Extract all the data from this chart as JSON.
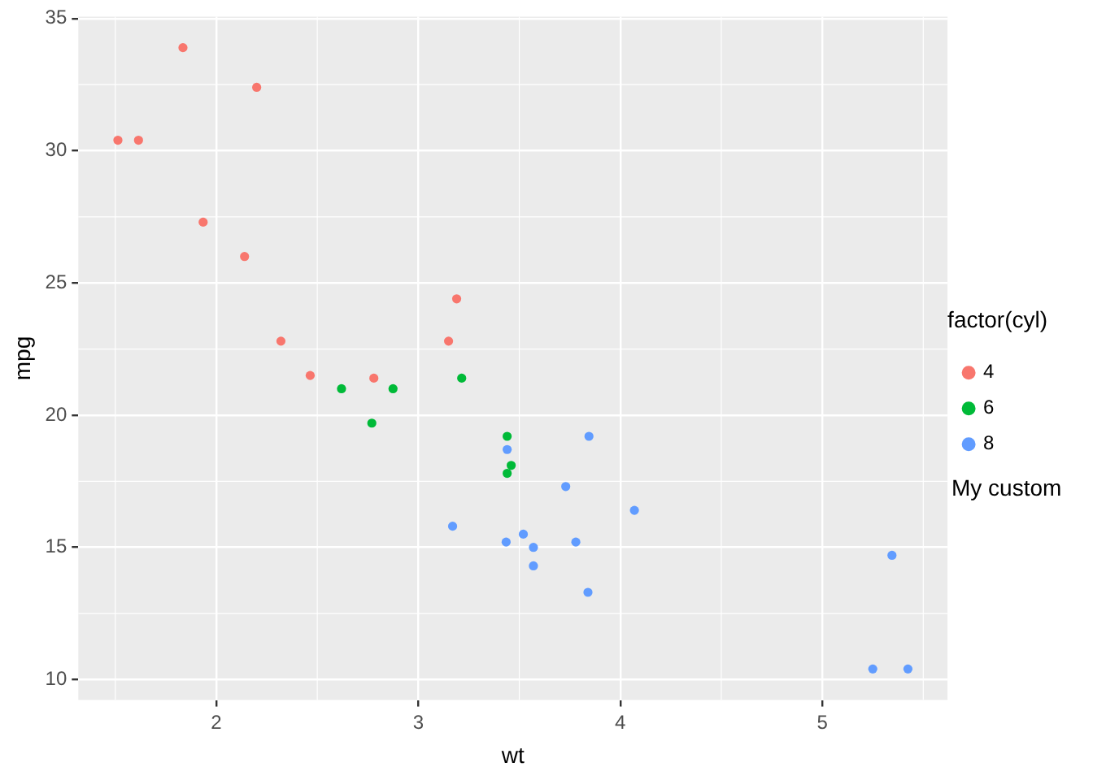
{
  "chart_data": {
    "type": "scatter",
    "xlabel": "wt",
    "ylabel": "mpg",
    "legend_title": "factor(cyl)",
    "legend": "right",
    "grid": true,
    "marker": "circle",
    "xlim": [
      1.317,
      5.62
    ],
    "ylim": [
      9.225,
      35.075
    ],
    "xticks": [
      2,
      3,
      4,
      5
    ],
    "yticks": [
      10,
      15,
      20,
      25,
      30,
      35
    ],
    "series": [
      {
        "name": "4",
        "color": "#f8766d",
        "x": [
          2.32,
          3.19,
          3.15,
          2.2,
          1.615,
          1.835,
          2.465,
          1.935,
          2.14,
          1.513,
          2.78
        ],
        "values": [
          22.8,
          24.4,
          22.8,
          32.4,
          30.4,
          33.9,
          21.5,
          27.3,
          26.0,
          30.4,
          21.4
        ]
      },
      {
        "name": "6",
        "color": "#00ba38",
        "x": [
          2.62,
          2.875,
          3.215,
          3.46,
          3.44,
          3.44,
          2.77
        ],
        "values": [
          21.0,
          21.0,
          21.4,
          18.1,
          19.2,
          17.8,
          19.7
        ]
      },
      {
        "name": "8",
        "color": "#619cff",
        "x": [
          3.44,
          3.57,
          4.07,
          3.73,
          3.78,
          5.25,
          5.424,
          5.345,
          3.52,
          3.435,
          3.84,
          3.845,
          3.17,
          3.57
        ],
        "values": [
          18.7,
          14.3,
          16.4,
          17.3,
          15.2,
          10.4,
          10.4,
          14.7,
          15.5,
          15.2,
          13.3,
          19.2,
          15.8,
          15.0
        ]
      }
    ],
    "annotations": [
      "My custom"
    ]
  }
}
